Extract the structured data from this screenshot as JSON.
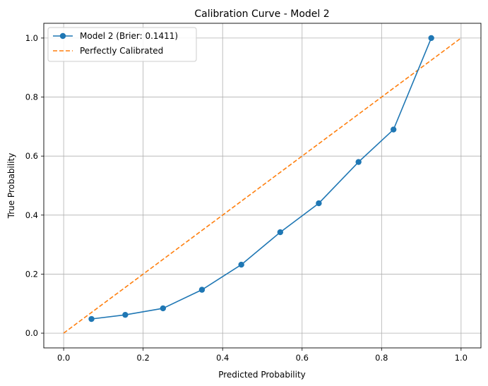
{
  "chart_data": {
    "type": "line",
    "title": "Calibration Curve - Model 2",
    "xlabel": "Predicted Probability",
    "ylabel": "True Probability",
    "xlim": [
      -0.05,
      1.05
    ],
    "ylim": [
      -0.05,
      1.05
    ],
    "xticks": [
      0.0,
      0.2,
      0.4,
      0.6,
      0.8,
      1.0
    ],
    "yticks": [
      0.0,
      0.2,
      0.4,
      0.6,
      0.8,
      1.0
    ],
    "xtick_labels": [
      "0.0",
      "0.2",
      "0.4",
      "0.6",
      "0.8",
      "1.0"
    ],
    "ytick_labels": [
      "0.0",
      "0.2",
      "0.4",
      "0.6",
      "0.8",
      "1.0"
    ],
    "grid": true,
    "legend_position": "top-left",
    "series": [
      {
        "name": "Model 2 (Brier: 0.1411)",
        "style": "line-with-markers",
        "color": "#1f77b4",
        "x": [
          0.07,
          0.155,
          0.25,
          0.348,
          0.447,
          0.545,
          0.642,
          0.742,
          0.83,
          0.925
        ],
        "y": [
          0.048,
          0.062,
          0.084,
          0.147,
          0.232,
          0.342,
          0.44,
          0.58,
          0.69,
          1.0
        ]
      },
      {
        "name": "Perfectly Calibrated",
        "style": "dashed",
        "color": "#ff7f0e",
        "x": [
          0.0,
          1.0
        ],
        "y": [
          0.0,
          1.0
        ]
      }
    ]
  }
}
